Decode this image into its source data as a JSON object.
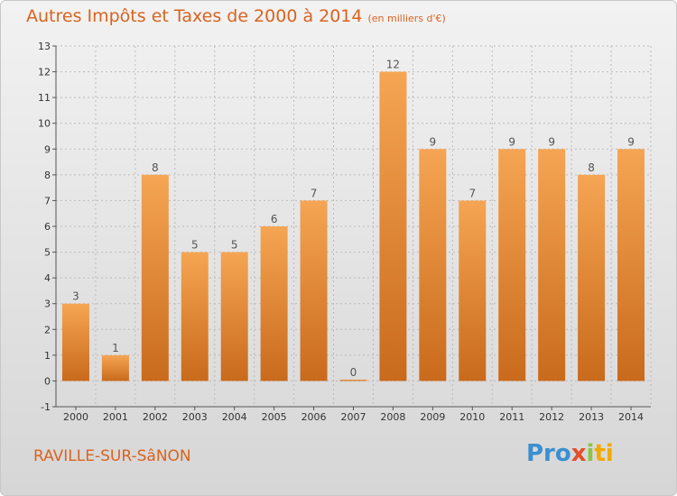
{
  "header": {
    "title": "Autres Impôts et Taxes de 2000 à 2014",
    "unit": "(en milliers d'€)"
  },
  "footer": {
    "city": "RAVILLE-SUR-SâNON",
    "logo": [
      "Pro",
      "x",
      "i",
      "ti"
    ]
  },
  "colors": {
    "bar_top": "#f5a553",
    "bar_bottom": "#c96a1c",
    "title": "#d9631e",
    "axis": "#555555",
    "grid": "#bbbbbb"
  },
  "chart_data": {
    "type": "bar",
    "title": "Autres Impôts et Taxes de 2000 à 2014",
    "xlabel": "",
    "ylabel": "",
    "categories": [
      "2000",
      "2001",
      "2002",
      "2003",
      "2004",
      "2005",
      "2006",
      "2007",
      "2008",
      "2009",
      "2010",
      "2011",
      "2012",
      "2013",
      "2014"
    ],
    "values": [
      3,
      1,
      8,
      5,
      5,
      6,
      7,
      0,
      12,
      9,
      7,
      9,
      9,
      8,
      9
    ],
    "data_labels": [
      "3",
      "1",
      "8",
      "5",
      "5",
      "6",
      "7",
      "0",
      "12",
      "9",
      "7",
      "9",
      "9",
      "8",
      "9"
    ],
    "yticks": [
      "-1",
      "0",
      "1",
      "2",
      "3",
      "4",
      "5",
      "6",
      "7",
      "8",
      "9",
      "10",
      "11",
      "12",
      "13"
    ],
    "ylim": [
      -1,
      13
    ],
    "grid": true
  }
}
